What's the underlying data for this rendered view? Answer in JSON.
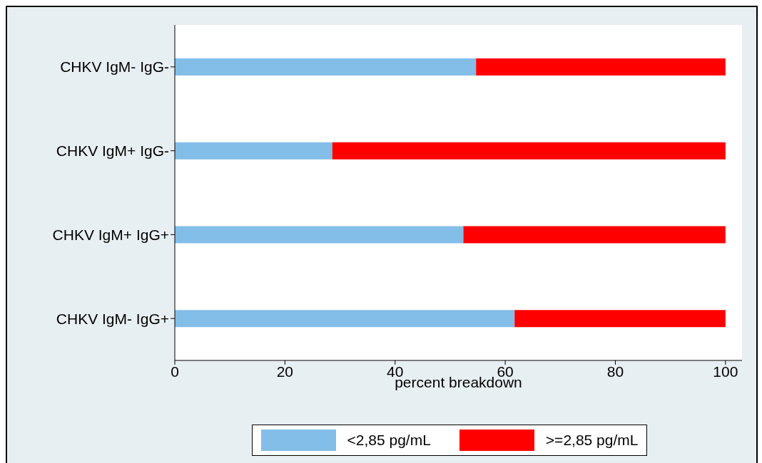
{
  "chart_data": {
    "type": "bar",
    "orientation": "horizontal",
    "stacked": true,
    "xlabel": "percent breakdown",
    "categories": [
      "CHKV IgM- IgG-",
      "CHKV IgM+ IgG-",
      "CHKV IgM+ IgG+",
      "CHKV IgM- IgG+"
    ],
    "series": [
      {
        "name": "<2,85 pg/mL",
        "color": "#83bee9",
        "values": [
          54.7,
          28.6,
          52.4,
          61.7
        ]
      },
      {
        "name": ">=2,85 pg/mL",
        "color": "#ff0000",
        "values": [
          45.3,
          71.4,
          47.6,
          38.3
        ]
      }
    ],
    "xlim": [
      0,
      103
    ],
    "xticks": [
      0,
      20,
      40,
      60,
      80,
      100
    ],
    "grid": "x",
    "legend": "bottom"
  }
}
